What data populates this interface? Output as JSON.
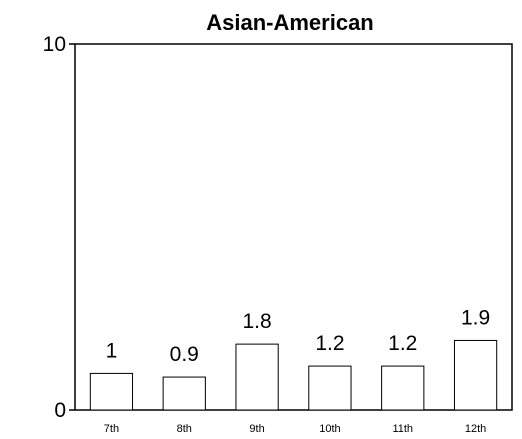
{
  "chart_data": {
    "type": "bar",
    "title": "Asian-American",
    "xlabel": "",
    "ylabel": "",
    "categories": [
      "7th",
      "8th",
      "9th",
      "10th",
      "11th",
      "12th"
    ],
    "values": [
      1,
      0.9,
      1.8,
      1.2,
      1.2,
      1.9
    ],
    "data_labels": [
      "1",
      "0.9",
      "1.8",
      "1.2",
      "1.2",
      "1.9"
    ],
    "ylim": [
      0,
      10
    ],
    "y_ticks": [
      0,
      10
    ],
    "y_tick_labels": [
      "0",
      "10"
    ],
    "grid": false,
    "legend": "none",
    "colors": {
      "bar_fill": "#ffffff",
      "bar_stroke": "#000000",
      "axis": "#000000",
      "text": "#000000"
    }
  }
}
